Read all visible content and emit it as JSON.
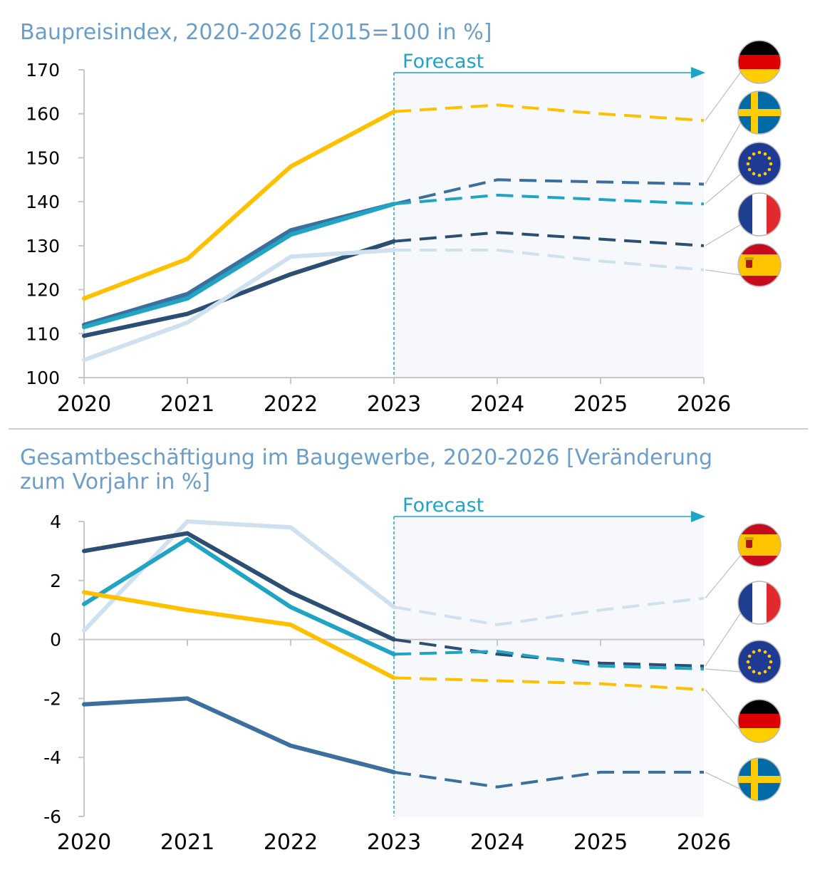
{
  "colors": {
    "title": "#6a9ec8",
    "forecast": "#1fa4c4",
    "forecast_bg": "#f6f8fc",
    "axis": "#c8c8c8",
    "divider": "#cfcfcf"
  },
  "flags": [
    "germany-flag-icon",
    "sweden-flag-icon",
    "eu-flag-icon",
    "france-flag-icon",
    "spain-flag-icon"
  ],
  "chart_data": [
    {
      "type": "line",
      "title": "Baupreisindex, 2020-2026 [2015=100 in %]",
      "forecast_label": "Forecast",
      "forecast_start": 2023,
      "x": [
        2020,
        2021,
        2022,
        2023,
        2024,
        2025,
        2026
      ],
      "ylim": [
        100,
        170
      ],
      "yticks": [
        100,
        110,
        120,
        130,
        140,
        150,
        160,
        170
      ],
      "grid": false,
      "legend": "flags-right",
      "series": [
        {
          "flag": "germany-flag-icon",
          "color": "#ffc000",
          "values": [
            118,
            127,
            148,
            160.5,
            162,
            160,
            158.5
          ]
        },
        {
          "flag": "sweden-flag-icon",
          "color": "#3b6f9e",
          "values": [
            112,
            119,
            133.5,
            139.5,
            145,
            144.5,
            144
          ]
        },
        {
          "flag": "eu-flag-icon",
          "color": "#1fa4c4",
          "values": [
            111.5,
            118,
            132.5,
            139.5,
            141.5,
            140.5,
            139.5
          ]
        },
        {
          "flag": "france-flag-icon",
          "color": "#2b4e72",
          "values": [
            109.5,
            114.5,
            123.5,
            131,
            133,
            131.5,
            130
          ]
        },
        {
          "flag": "spain-flag-icon",
          "color": "#cfe0ee",
          "values": [
            104,
            112.5,
            127.5,
            129,
            129,
            126.5,
            124.5
          ]
        }
      ]
    },
    {
      "type": "line",
      "title": "Gesamtbeschäftigung im Baugewerbe, 2020-2026 [Veränderung zum Vorjahr in %]",
      "title_lines": [
        "Gesamtbeschäftigung im Baugewerbe, 2020-2026 [Veränderung",
        "zum Vorjahr in %]"
      ],
      "forecast_label": "Forecast",
      "forecast_start": 2023,
      "x": [
        2020,
        2021,
        2022,
        2023,
        2024,
        2025,
        2026
      ],
      "ylim": [
        -6,
        4
      ],
      "yticks": [
        -6,
        -4,
        -2,
        0,
        2,
        4
      ],
      "grid": false,
      "legend": "flags-right",
      "series": [
        {
          "flag": "spain-flag-icon",
          "color": "#cfe0ee",
          "values": [
            0.3,
            4.0,
            3.8,
            1.1,
            0.5,
            1.0,
            1.4
          ]
        },
        {
          "flag": "france-flag-icon",
          "color": "#2b4e72",
          "values": [
            3.0,
            3.6,
            1.6,
            0.0,
            -0.5,
            -0.8,
            -0.9
          ]
        },
        {
          "flag": "eu-flag-icon",
          "color": "#1fa4c4",
          "values": [
            1.2,
            3.4,
            1.1,
            -0.5,
            -0.4,
            -0.9,
            -1.0
          ]
        },
        {
          "flag": "germany-flag-icon",
          "color": "#ffc000",
          "values": [
            1.6,
            1.0,
            0.5,
            -1.3,
            -1.4,
            -1.5,
            -1.7
          ]
        },
        {
          "flag": "sweden-flag-icon",
          "color": "#3b6f9e",
          "values": [
            -2.2,
            -2.0,
            -3.6,
            -4.5,
            -5.0,
            -4.5,
            -4.5
          ]
        }
      ]
    }
  ]
}
